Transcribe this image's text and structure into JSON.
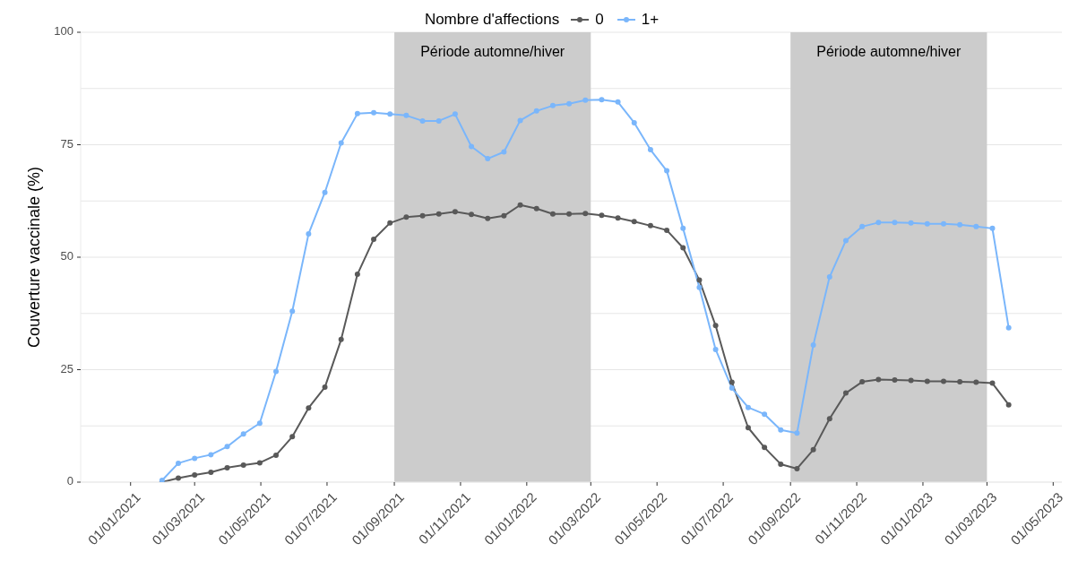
{
  "chart_data": {
    "type": "line",
    "ylabel": "Couverture vaccinale (%)",
    "legend_title": "Nombre d'affections",
    "legend": "top",
    "grid": "y",
    "marker": "circle",
    "line_style": "solid",
    "x": [
      "2021-01-30",
      "2021-02-14",
      "2021-03-01",
      "2021-03-16",
      "2021-03-31",
      "2021-04-15",
      "2021-04-30",
      "2021-05-15",
      "2021-05-30",
      "2021-06-14",
      "2021-06-29",
      "2021-07-14",
      "2021-07-29",
      "2021-08-13",
      "2021-08-28",
      "2021-09-12",
      "2021-09-27",
      "2021-10-12",
      "2021-10-27",
      "2021-11-11",
      "2021-11-26",
      "2021-12-11",
      "2021-12-26",
      "2022-01-10",
      "2022-01-25",
      "2022-02-09",
      "2022-02-24",
      "2022-03-11",
      "2022-03-26",
      "2022-04-10",
      "2022-04-25",
      "2022-05-10",
      "2022-05-25",
      "2022-06-09",
      "2022-06-24",
      "2022-07-09",
      "2022-07-24",
      "2022-08-08",
      "2022-08-23",
      "2022-09-07",
      "2022-09-22",
      "2022-10-07",
      "2022-10-22",
      "2022-11-06",
      "2022-11-21",
      "2022-12-06",
      "2022-12-21",
      "2023-01-05",
      "2023-01-20",
      "2023-02-04",
      "2023-02-19",
      "2023-03-06",
      "2023-03-21"
    ],
    "series": [
      {
        "name": "0",
        "color": "#595959",
        "values": [
          0,
          0.9,
          1.6,
          2.2,
          3.2,
          3.8,
          4.3,
          6.0,
          10.1,
          16.5,
          21.1,
          31.7,
          46.2,
          54.0,
          57.6,
          58.9,
          59.2,
          59.6,
          60.1,
          59.5,
          58.6,
          59.2,
          61.6,
          60.8,
          59.6,
          59.6,
          59.7,
          59.3,
          58.7,
          57.9,
          57.0,
          56.0,
          52.1,
          44.9,
          34.8,
          22.2,
          12.1,
          7.7,
          4.0,
          3.0,
          7.2,
          14.1,
          19.8,
          22.3,
          22.8,
          22.7,
          22.6,
          22.4,
          22.4,
          22.3,
          22.2,
          22.0,
          17.2
        ]
      },
      {
        "name": "1+",
        "color": "#7ab6fb",
        "values": [
          0.4,
          4.2,
          5.3,
          6.1,
          7.9,
          10.7,
          13.1,
          24.6,
          38.0,
          55.2,
          64.4,
          75.4,
          81.9,
          82.1,
          81.8,
          81.5,
          80.3,
          80.3,
          81.8,
          74.6,
          71.9,
          73.4,
          80.4,
          82.5,
          83.7,
          84.1,
          84.9,
          85.0,
          84.5,
          79.9,
          73.9,
          69.2,
          56.4,
          43.3,
          29.5,
          20.9,
          16.6,
          15.1,
          11.6,
          10.9,
          30.5,
          45.6,
          53.7,
          56.8,
          57.7,
          57.7,
          57.6,
          57.4,
          57.4,
          57.2,
          56.8,
          56.4,
          34.3
        ]
      }
    ],
    "xlim": [
      "2020-11-16",
      "2023-05-09"
    ],
    "xticks": [
      {
        "value": "2021-01-01",
        "label": "01/01/2021"
      },
      {
        "value": "2021-03-01",
        "label": "01/03/2021"
      },
      {
        "value": "2021-05-01",
        "label": "01/05/2021"
      },
      {
        "value": "2021-07-01",
        "label": "01/07/2021"
      },
      {
        "value": "2021-09-01",
        "label": "01/09/2021"
      },
      {
        "value": "2021-11-01",
        "label": "01/11/2021"
      },
      {
        "value": "2022-01-01",
        "label": "01/01/2022"
      },
      {
        "value": "2022-03-01",
        "label": "01/03/2022"
      },
      {
        "value": "2022-05-01",
        "label": "01/05/2022"
      },
      {
        "value": "2022-07-01",
        "label": "01/07/2022"
      },
      {
        "value": "2022-09-01",
        "label": "01/09/2022"
      },
      {
        "value": "2022-11-01",
        "label": "01/11/2022"
      },
      {
        "value": "2023-01-01",
        "label": "01/01/2023"
      },
      {
        "value": "2023-03-01",
        "label": "01/03/2023"
      },
      {
        "value": "2023-05-01",
        "label": "01/05/2023"
      }
    ],
    "ylim": [
      0,
      100
    ],
    "yticks": [
      0,
      {
        "value": 12.5,
        "label": null
      },
      25,
      {
        "value": 37.5,
        "label": null
      },
      50,
      {
        "value": 62.5,
        "label": null
      },
      75,
      {
        "value": 87.5,
        "label": null
      },
      100
    ],
    "bands": [
      {
        "axis": "x",
        "from": "2021-09-01",
        "to": "2022-03-01",
        "label": "Période automne/hiver",
        "color": "#cccccc"
      },
      {
        "axis": "x",
        "from": "2022-09-01",
        "to": "2023-03-01",
        "label": "Période automne/hiver",
        "color": "#cccccc"
      }
    ]
  }
}
